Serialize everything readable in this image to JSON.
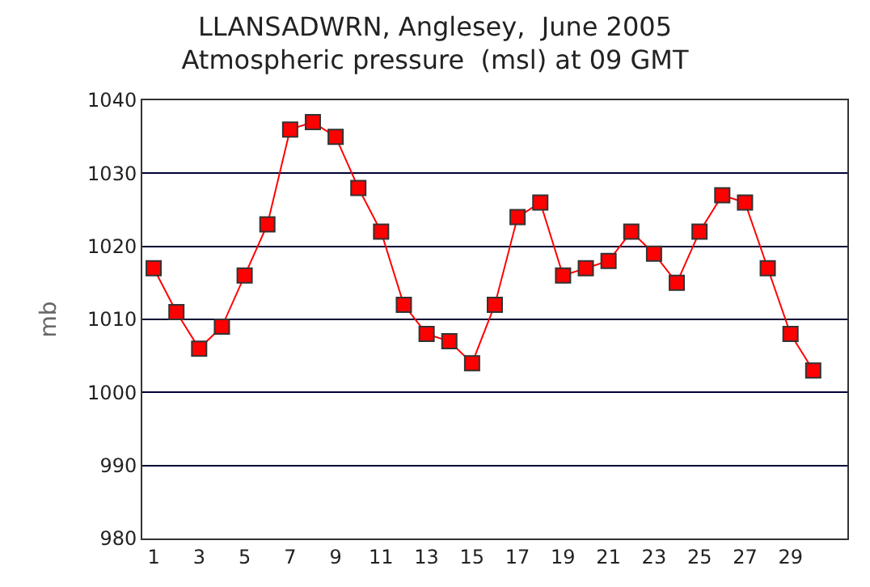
{
  "chart_data": {
    "type": "line",
    "title": "LLANSADWRN, Anglesey,  June 2005",
    "subtitle": "Atmospheric pressure  (msl) at 09 GMT",
    "ylabel": "mb",
    "x": [
      1,
      2,
      3,
      4,
      5,
      6,
      7,
      8,
      9,
      10,
      11,
      12,
      13,
      14,
      15,
      16,
      17,
      18,
      19,
      20,
      21,
      22,
      23,
      24,
      25,
      26,
      27,
      28,
      29,
      30
    ],
    "series": [
      {
        "color": "#ff0000",
        "values": [
          1017,
          1011,
          1006,
          1009,
          1016,
          1023,
          1036,
          1037,
          1035,
          1028,
          1022,
          1012,
          1008,
          1007,
          1004,
          1012,
          1024,
          1026,
          1016,
          1017,
          1018,
          1022,
          1019,
          1015,
          1022,
          1027,
          1026,
          1017,
          1008,
          1003
        ]
      }
    ],
    "xlim": [
      0.5,
      31.5
    ],
    "xticks": [
      1,
      3,
      5,
      7,
      9,
      11,
      13,
      15,
      17,
      19,
      21,
      23,
      25,
      27,
      29
    ],
    "ylim": [
      980,
      1040
    ],
    "yticks": [
      980,
      990,
      1000,
      1010,
      1020,
      1030,
      1040
    ],
    "grid": "y",
    "marker": "square",
    "line_style": "solid",
    "legend": false
  }
}
